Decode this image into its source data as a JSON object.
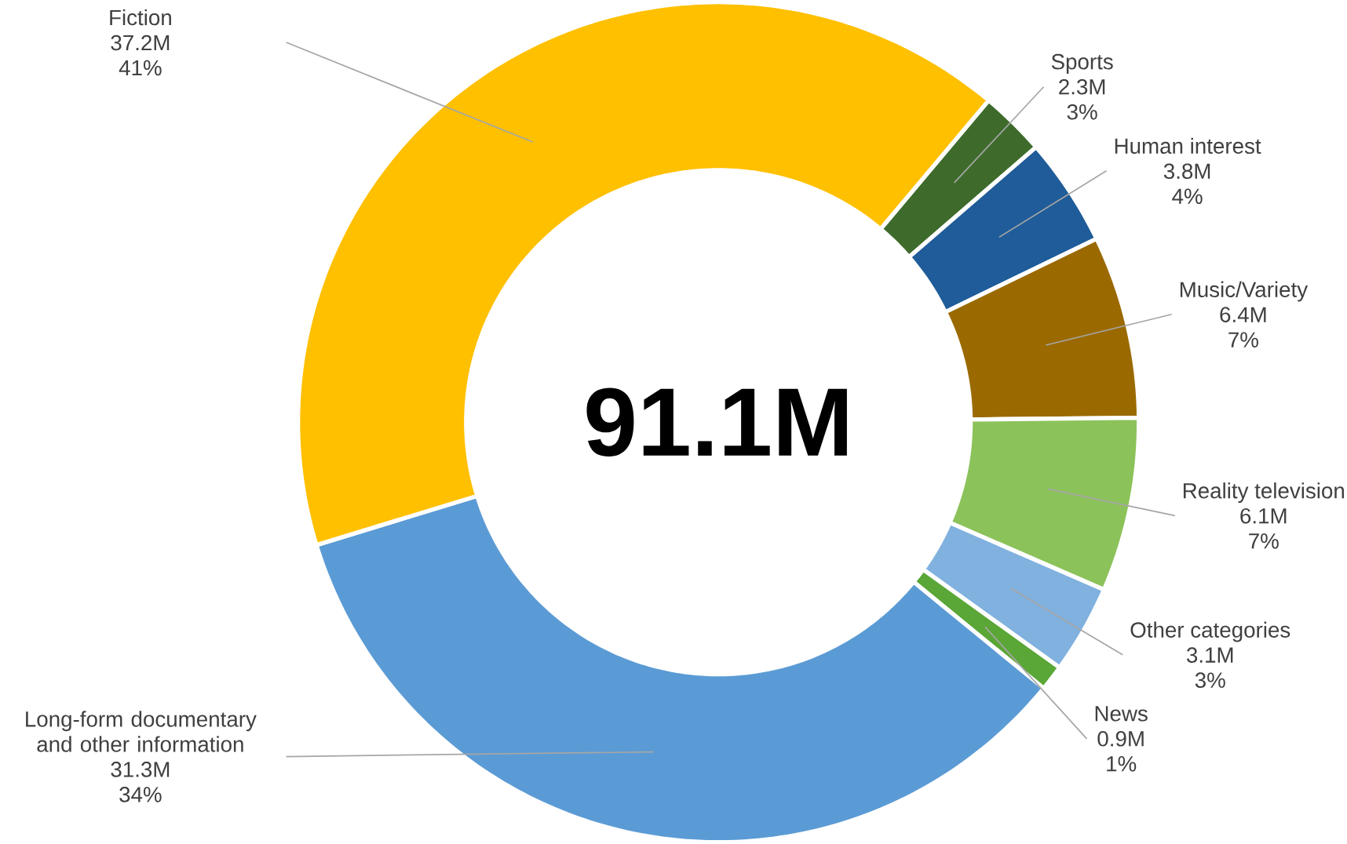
{
  "chart_data": {
    "type": "donut",
    "title": "91.1M",
    "categories": [
      "Sports",
      "Human interest",
      "Music/Variety",
      "Reality television",
      "Other categories",
      "News",
      "Long-form documentary and other information",
      "Fiction"
    ],
    "values": [
      2.3,
      3.8,
      6.4,
      6.1,
      3.1,
      0.9,
      31.3,
      37.2
    ],
    "value_labels": [
      "2.3M",
      "3.8M",
      "6.4M",
      "6.1M",
      "3.1M",
      "0.9M",
      "31.3M",
      "37.2M"
    ],
    "annotations": [
      "3%",
      "4%",
      "7%",
      "7%",
      "3%",
      "1%",
      "34%",
      "41%"
    ],
    "colors": [
      "#3e6b2b",
      "#1f5c99",
      "#9a6a00",
      "#8cc25a",
      "#80b1df",
      "#5aa636",
      "#5b9bd5",
      "#ffc000"
    ]
  }
}
